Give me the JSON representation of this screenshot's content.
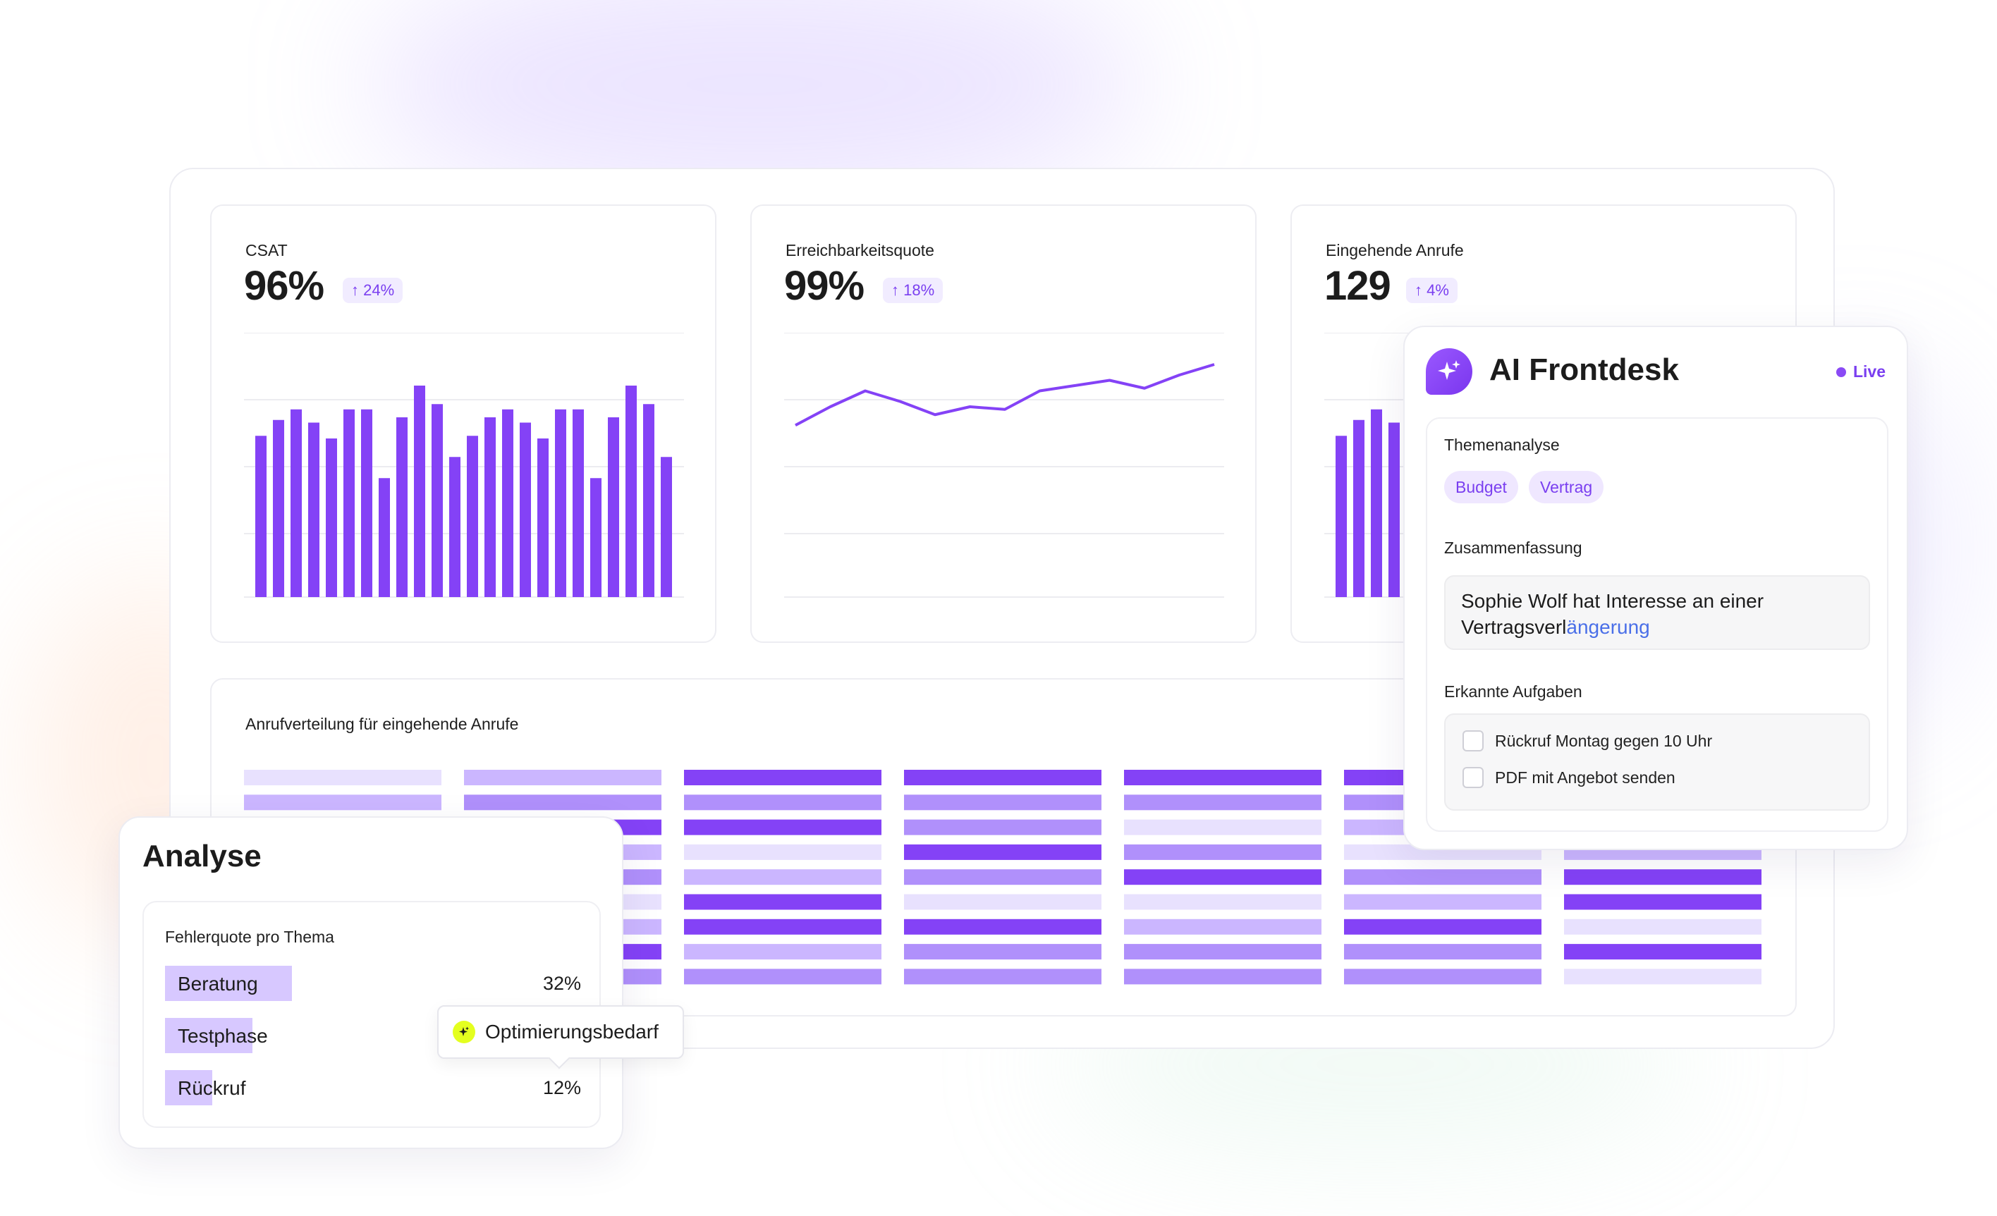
{
  "colors": {
    "accent": "#8442f6",
    "accent_light": "#b090fb",
    "accent_lighter": "#cbb6ff",
    "accent_faint": "#e8e1fe",
    "badge_bg": "#f1ecff",
    "analyse_bar": "#d7c8ff",
    "sparkle": "#e4ff1f"
  },
  "kpis": [
    {
      "title": "CSAT",
      "value": "96%",
      "delta": "↑ 24%"
    },
    {
      "title": "Erreichbarkeitsquote",
      "value": "99%",
      "delta": "↑ 18%"
    },
    {
      "title": "Eingehende Anrufe",
      "value": "129",
      "delta": "↑ 4%"
    }
  ],
  "chart_data": [
    {
      "type": "bar",
      "title": "CSAT",
      "xlabel": "",
      "ylabel": "",
      "grid": true,
      "values": [
        61,
        67,
        71,
        66,
        60,
        71,
        71,
        45,
        68,
        80,
        73,
        53,
        61,
        68,
        71,
        66,
        60,
        71,
        71,
        45,
        68,
        80,
        73,
        53
      ]
    },
    {
      "type": "line",
      "title": "Erreichbarkeitsquote",
      "xlabel": "",
      "ylabel": "",
      "grid": true,
      "values": [
        65,
        72,
        78,
        74,
        69,
        72,
        71,
        78,
        80,
        82,
        79,
        84,
        88
      ]
    },
    {
      "type": "bar",
      "title": "Eingehende Anrufe",
      "xlabel": "",
      "ylabel": "",
      "grid": true,
      "values": [
        61,
        67,
        71,
        66
      ]
    },
    {
      "type": "heatmap",
      "title": "Anrufverteilung für eingehende Anrufe",
      "levels": 4,
      "columns": [
        [
          1,
          2,
          2,
          1,
          1,
          2,
          2,
          1,
          1
        ],
        [
          2,
          3,
          4,
          2,
          3,
          1,
          2,
          4,
          3
        ],
        [
          4,
          3,
          4,
          1,
          2,
          4,
          4,
          2,
          3
        ],
        [
          4,
          3,
          3,
          4,
          3,
          1,
          4,
          3,
          3
        ],
        [
          4,
          3,
          1,
          3,
          4,
          1,
          2,
          3,
          3
        ],
        [
          4,
          3,
          2,
          1,
          3,
          2,
          4,
          3,
          3
        ],
        [
          4,
          2,
          3,
          2,
          4,
          4,
          1,
          4,
          1
        ]
      ]
    }
  ],
  "distribution": {
    "title": "Anrufverteilung für eingehende Anrufe"
  },
  "frontdesk": {
    "title": "AI Frontdesk",
    "status": "Live",
    "topics_label": "Themenanalyse",
    "tags": [
      "Budget",
      "Vertrag"
    ],
    "summary_label": "Zusammenfassung",
    "summary_text": "Sophie Wolf hat Interesse an einer Vertragsverl",
    "summary_highlight": "ängerung",
    "tasks_label": "Erkannte Aufgaben",
    "tasks": [
      "Rückruf Montag gegen 10 Uhr",
      "PDF mit Angebot senden"
    ]
  },
  "analyse": {
    "title": "Analyse",
    "subtitle": "Fehlerquote pro Thema",
    "rows": [
      {
        "label": "Beratung",
        "value": "32%",
        "fraction": 0.32
      },
      {
        "label": "Testphase",
        "value": "",
        "fraction": 0.22
      },
      {
        "label": "Rückruf",
        "value": "12%",
        "fraction": 0.12
      }
    ]
  },
  "tooltip": {
    "label": "Optimierungsbedarf"
  }
}
